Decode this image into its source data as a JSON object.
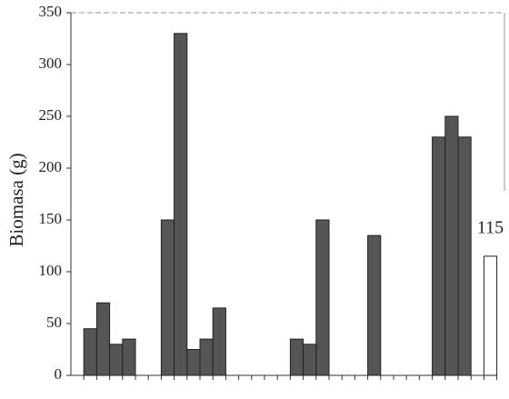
{
  "chart_data": {
    "type": "bar",
    "y_label": "Biomasa (g)",
    "categories": [
      null,
      null,
      null,
      null,
      null,
      null,
      null,
      null,
      null,
      null,
      null,
      null,
      null,
      null,
      null,
      null,
      null,
      null,
      null,
      null,
      null,
      null,
      null,
      null,
      null,
      null,
      null,
      null,
      null,
      null,
      null,
      null,
      null
    ],
    "values": [
      null,
      45,
      70,
      30,
      35,
      null,
      null,
      150,
      330,
      25,
      35,
      65,
      null,
      null,
      null,
      null,
      null,
      35,
      30,
      150,
      null,
      null,
      null,
      135,
      null,
      null,
      null,
      null,
      230,
      250,
      230,
      null,
      115
    ],
    "colors": [
      "#555",
      "#555",
      "#555",
      "#555",
      "#555",
      "#555",
      "#555",
      "#555",
      "#555",
      "#555",
      "#555",
      "#555",
      "#555",
      "#555",
      "#555",
      "#555",
      "#555",
      "#555",
      "#555",
      "#555",
      "#555",
      "#555",
      "#555",
      "#555",
      "#555",
      "#555",
      "#555",
      "#555",
      "#555",
      "#555",
      "#555",
      "#555",
      "#ffffff"
    ],
    "value_labels": [
      null,
      null,
      null,
      null,
      null,
      null,
      null,
      null,
      null,
      null,
      null,
      null,
      null,
      null,
      null,
      null,
      null,
      null,
      null,
      null,
      null,
      null,
      null,
      null,
      null,
      null,
      null,
      null,
      null,
      null,
      null,
      null,
      "115"
    ],
    "ylim": [
      0,
      350
    ],
    "yticks": [
      0,
      50,
      100,
      150,
      200,
      250,
      300,
      350
    ]
  }
}
